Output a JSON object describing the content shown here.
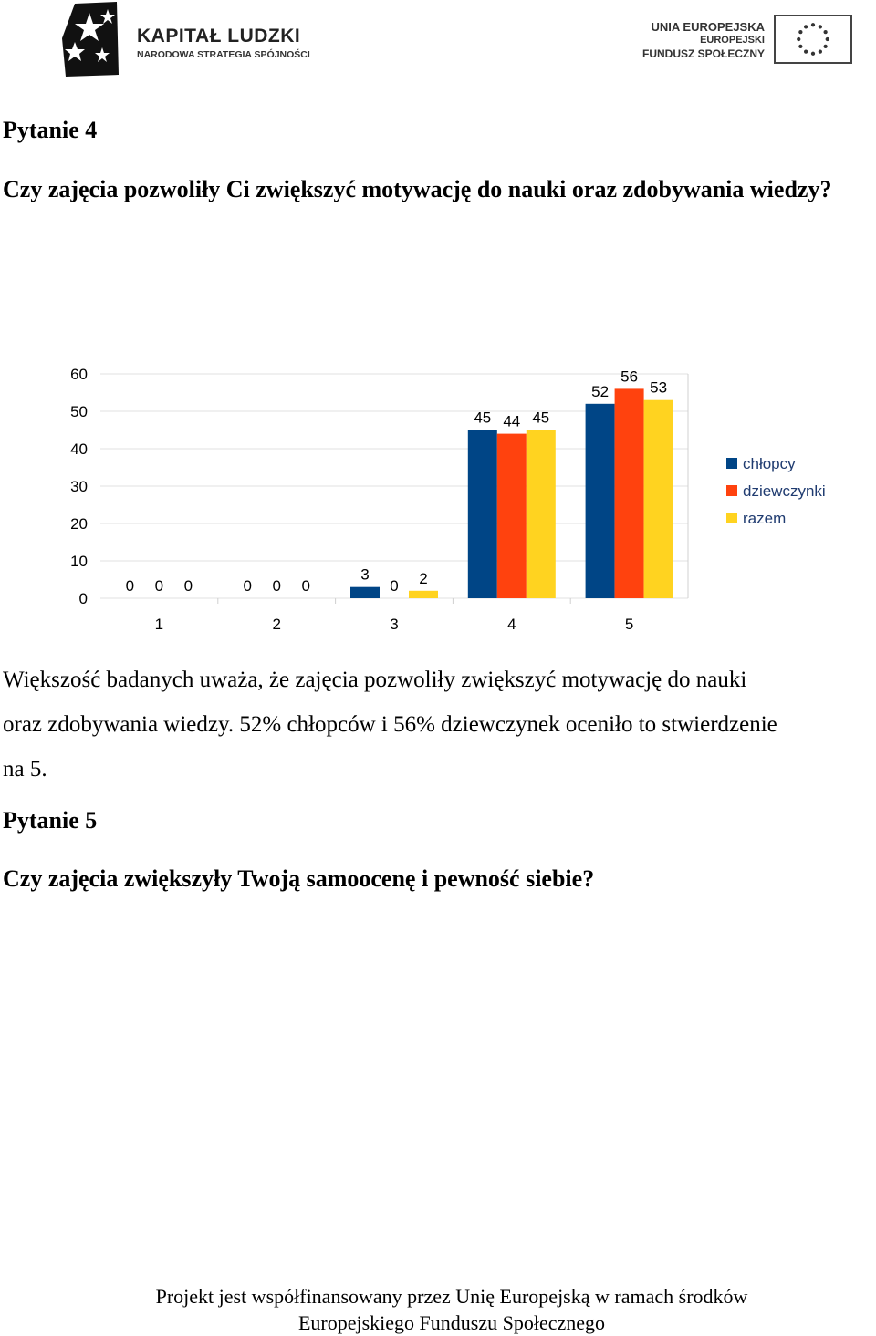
{
  "header": {
    "left_logo": {
      "title": "KAPITAŁ LUDZKI",
      "subtitle": "NARODOWA STRATEGIA SPÓJNOŚCI"
    },
    "right_logo": {
      "line1": "UNIA EUROPEJSKA",
      "line2": "EUROPEJSKI",
      "line3": "FUNDUSZ SPOŁECZNY"
    }
  },
  "question4": {
    "heading": "Pytanie 4",
    "text": "Czy zajęcia pozwoliły Ci zwiększyć motywację do nauki oraz zdobywania wiedzy?"
  },
  "chart_data": {
    "type": "bar",
    "categories": [
      "1",
      "2",
      "3",
      "4",
      "5"
    ],
    "series": [
      {
        "name": "chłopcy",
        "values": [
          0,
          0,
          3,
          45,
          52
        ],
        "color": "#004586"
      },
      {
        "name": "dziewczynki",
        "values": [
          0,
          0,
          0,
          44,
          56
        ],
        "color": "#ff420e"
      },
      {
        "name": "razem",
        "values": [
          0,
          0,
          2,
          45,
          53
        ],
        "color": "#ffd320"
      }
    ],
    "y_ticks": [
      "0",
      "10",
      "20",
      "30",
      "40",
      "50",
      "60"
    ],
    "ylim": [
      0,
      60
    ],
    "grid": true,
    "legend_position": "right"
  },
  "summary": {
    "line1": "Większość badanych uważa, że  zajęcia pozwoliły zwiększyć motywację do nauki",
    "line2": "oraz zdobywania wiedzy. 52% chłopców i 56% dziewczynek oceniło to stwierdzenie",
    "line3": "na 5."
  },
  "question5": {
    "heading": "Pytanie 5",
    "text": "Czy zajęcia zwiększyły Twoją samoocenę i pewność siebie?"
  },
  "footer": {
    "line1": "Projekt jest współfinansowany przez Unię Europejską w ramach środków",
    "line2": "Europejskiego Funduszu  Społecznego"
  }
}
